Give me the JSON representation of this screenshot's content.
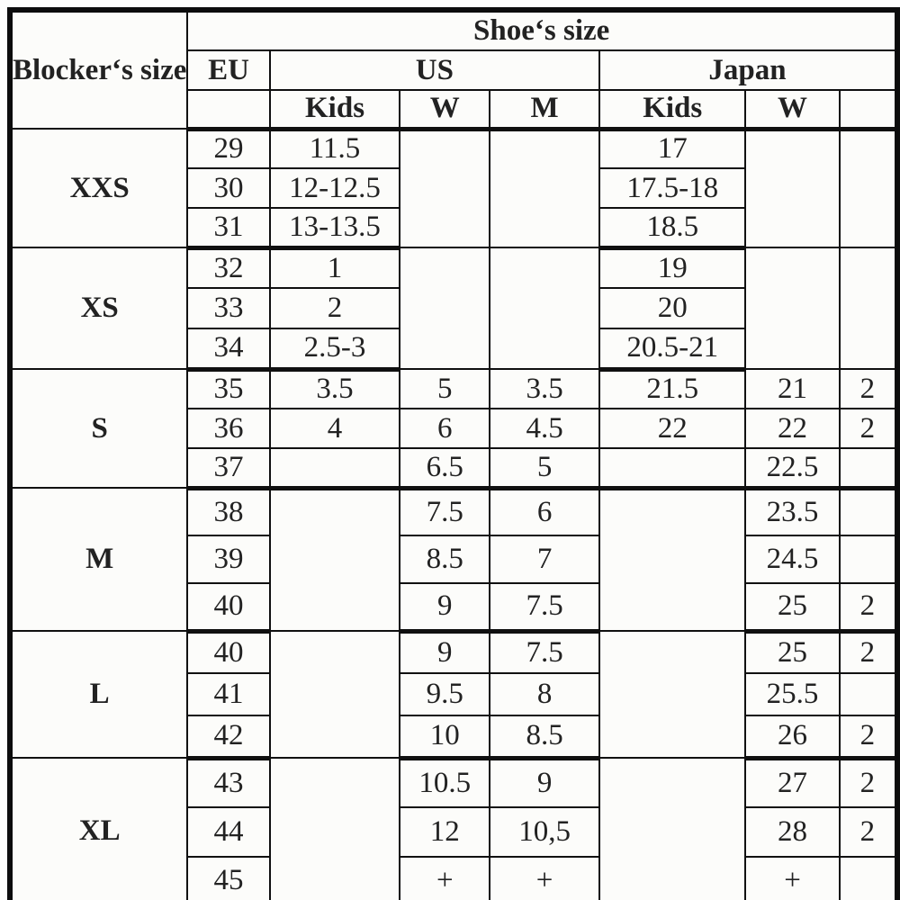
{
  "colors": {
    "background": "#fcfcfa",
    "grid_line": "#101010",
    "text": "#222222"
  },
  "table": {
    "corner_header": "Blocker‘s size",
    "top_header": "Shoe‘s size",
    "regions": [
      "EU",
      "US",
      "Japan"
    ],
    "sub_headers": [
      "",
      "Kids",
      "W",
      "M",
      "Kids",
      "W",
      ""
    ],
    "sections": [
      {
        "label": "XXS",
        "eu": [
          "29",
          "30",
          "31"
        ],
        "us_kids": [
          "11.5",
          "12-12.5",
          "13-13.5"
        ],
        "us_w": null,
        "us_m": null,
        "jp_kids": [
          "17",
          "17.5-18",
          "18.5"
        ],
        "jp_w": null,
        "jp_m": null
      },
      {
        "label": "XS",
        "eu": [
          "32",
          "33",
          "34"
        ],
        "us_kids": [
          "1",
          "2",
          "2.5-3"
        ],
        "us_w": null,
        "us_m": null,
        "jp_kids": [
          "19",
          "20",
          "20.5-21"
        ],
        "jp_w": null,
        "jp_m": null
      },
      {
        "label": "S",
        "eu": [
          "35",
          "36",
          "37"
        ],
        "us_kids": [
          "3.5",
          "4",
          ""
        ],
        "us_w": [
          "5",
          "6",
          "6.5"
        ],
        "us_m": [
          "3.5",
          "4.5",
          "5"
        ],
        "jp_kids": [
          "21.5",
          "22",
          ""
        ],
        "jp_w": [
          "21",
          "22",
          "22.5"
        ],
        "jp_m": [
          "2",
          "2",
          ""
        ]
      },
      {
        "label": "M",
        "eu": [
          "38",
          "39",
          "40"
        ],
        "us_kids": null,
        "us_w": [
          "7.5",
          "8.5",
          "9"
        ],
        "us_m": [
          "6",
          "7",
          "7.5"
        ],
        "jp_kids": null,
        "jp_w": [
          "23.5",
          "24.5",
          "25"
        ],
        "jp_m": [
          "",
          "",
          "2"
        ]
      },
      {
        "label": "L",
        "eu": [
          "40",
          "41",
          "42"
        ],
        "us_kids": null,
        "us_w": [
          "9",
          "9.5",
          "10"
        ],
        "us_m": [
          "7.5",
          "8",
          "8.5"
        ],
        "jp_kids": null,
        "jp_w": [
          "25",
          "25.5",
          "26"
        ],
        "jp_m": [
          "2",
          "",
          "2"
        ]
      },
      {
        "label": "XL",
        "eu": [
          "43",
          "44",
          "45"
        ],
        "us_kids": null,
        "us_w": [
          "10.5",
          "12",
          "+"
        ],
        "us_m": [
          "9",
          "10,5",
          "+"
        ],
        "jp_kids": null,
        "jp_w": [
          "27",
          "28",
          "+"
        ],
        "jp_m": [
          "2",
          "2",
          ""
        ]
      }
    ]
  }
}
